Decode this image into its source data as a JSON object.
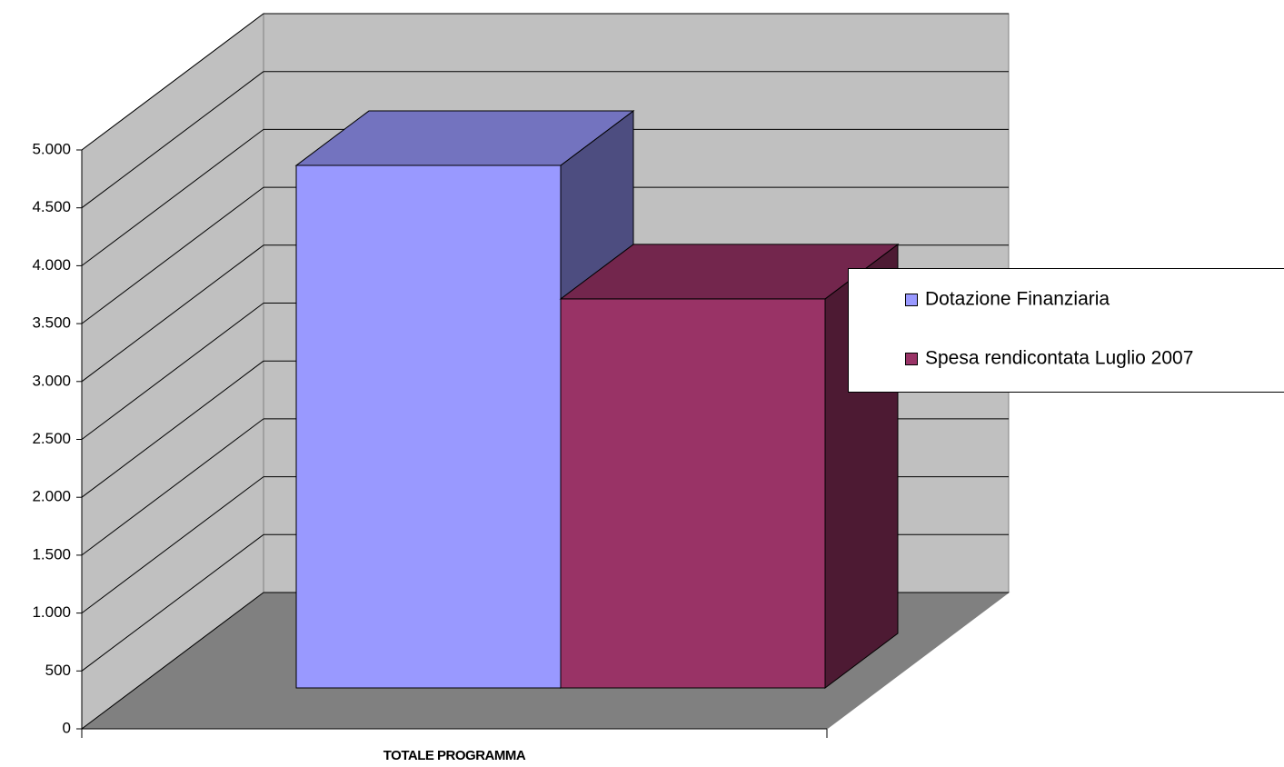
{
  "chart_data": {
    "type": "bar3d",
    "categories": [
      "TOTALE PROGRAMMA"
    ],
    "series": [
      {
        "name": "Dotazione Finanziaria",
        "color": "#9999ff",
        "values": [
          4513
        ]
      },
      {
        "name": "Spesa rendicontata Luglio 2007",
        "color": "#993366",
        "values": [
          3360
        ]
      }
    ],
    "ylim": [
      0,
      5000
    ],
    "yticks": [
      0,
      500,
      {
        "value": 1000,
        "label": "1.000"
      },
      {
        "value": 1500,
        "label": "1.500"
      },
      {
        "value": 2000,
        "label": "2.000"
      },
      {
        "value": 2500,
        "label": "2.500"
      },
      {
        "value": 3000,
        "label": "3.000"
      },
      {
        "value": 3500,
        "label": "3.500"
      },
      {
        "value": 4000,
        "label": "4.000"
      },
      {
        "value": 4500,
        "label": "4.500"
      },
      {
        "value": 5000,
        "label": "5.000"
      }
    ],
    "grid": true,
    "legend": "right"
  }
}
